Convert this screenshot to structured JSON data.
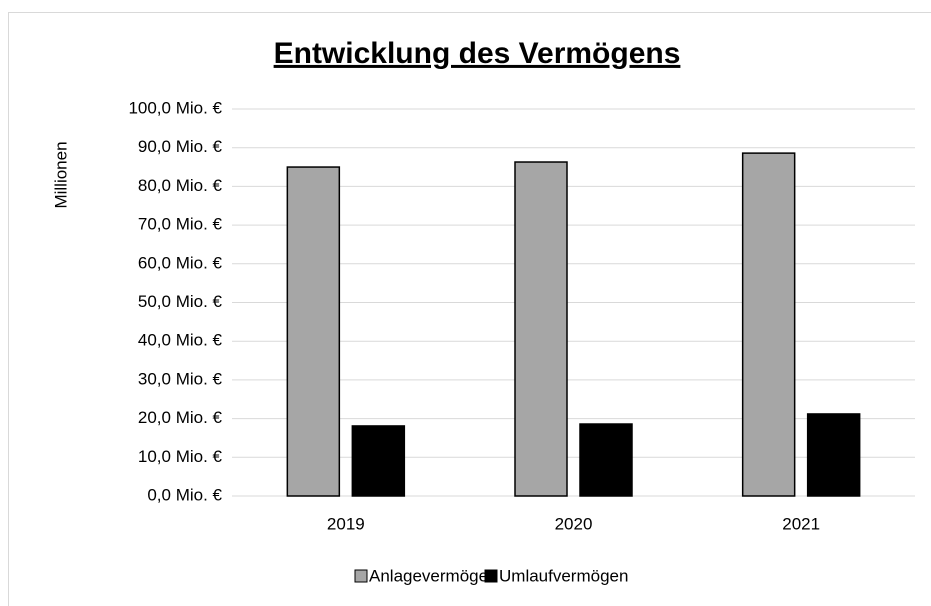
{
  "chart_data": {
    "type": "bar",
    "title": "Entwicklung des Vermögens",
    "y_label": "Millionen",
    "categories": [
      "2019",
      "2020",
      "2021"
    ],
    "series": [
      {
        "name": "Anlagevermögen",
        "color": "#a6a6a6",
        "values": [
          85.0,
          86.3,
          88.6
        ]
      },
      {
        "name": "Umlaufvermögen",
        "color": "#000000",
        "values": [
          18.1,
          18.6,
          21.2
        ]
      }
    ],
    "ylim": [
      0,
      100
    ],
    "yticks": [
      {
        "value": 0,
        "label": "0,0 Mio. €"
      },
      {
        "value": 10,
        "label": "10,0 Mio. €"
      },
      {
        "value": 20,
        "label": "20,0 Mio. €"
      },
      {
        "value": 30,
        "label": "30,0 Mio. €"
      },
      {
        "value": 40,
        "label": "40,0 Mio. €"
      },
      {
        "value": 50,
        "label": "50,0 Mio. €"
      },
      {
        "value": 60,
        "label": "60,0 Mio. €"
      },
      {
        "value": 70,
        "label": "70,0 Mio. €"
      },
      {
        "value": 80,
        "label": "80,0 Mio. €"
      },
      {
        "value": 90,
        "label": "90,0 Mio. €"
      },
      {
        "value": 100,
        "label": "100,0 Mio. €"
      }
    ],
    "grid": true,
    "legend": "bottom"
  }
}
